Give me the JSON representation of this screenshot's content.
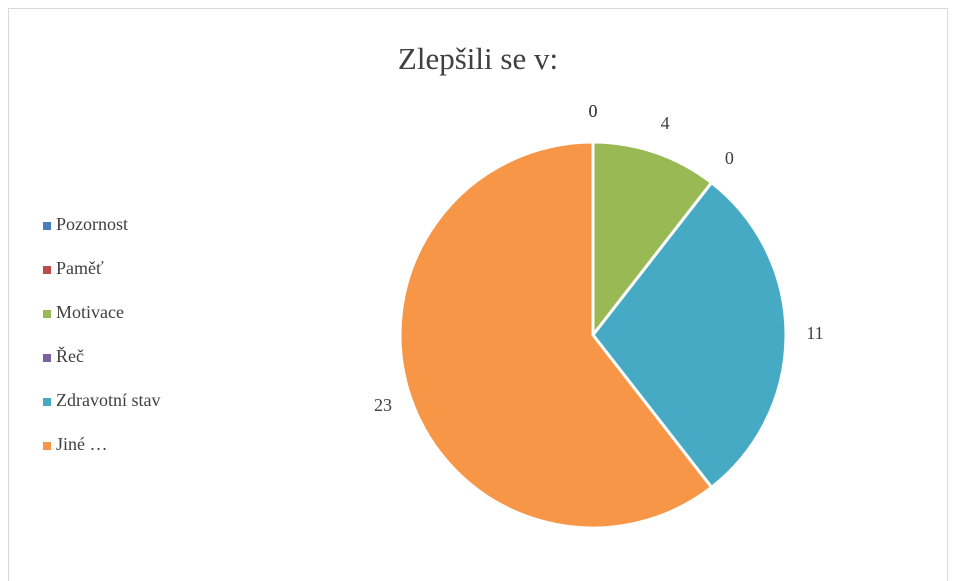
{
  "chart_data": {
    "type": "pie",
    "title": "Zlepšili se v:",
    "categories": [
      "Pozornost",
      "Paměť",
      "Motivace",
      "Řeč",
      "Zdravotní stav",
      "Jiné …"
    ],
    "values": [
      0,
      0,
      4,
      0,
      11,
      23
    ],
    "colors": [
      "#4a7ebb",
      "#be4b48",
      "#98b954",
      "#7d60a0",
      "#46aac5",
      "#f79646"
    ],
    "legend": "left"
  }
}
